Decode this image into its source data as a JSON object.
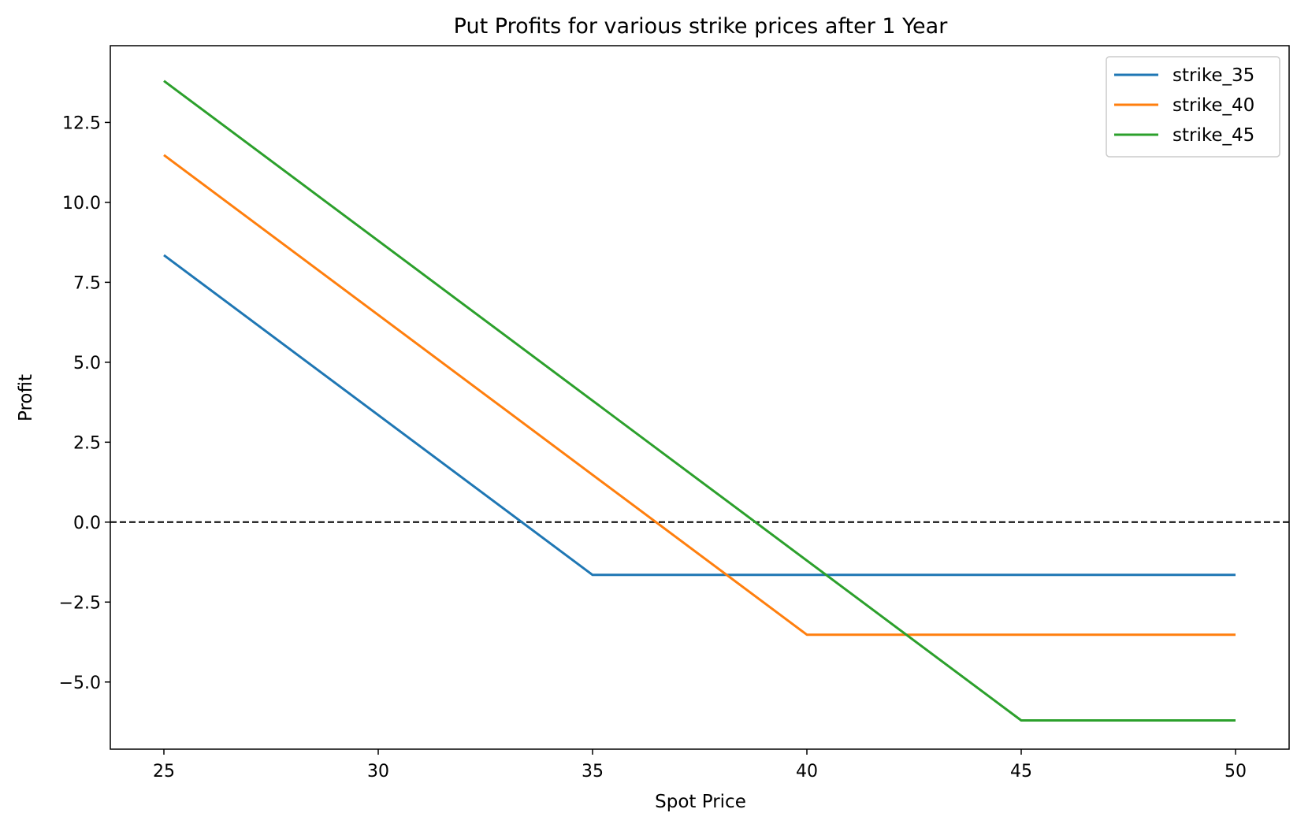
{
  "chart_data": {
    "type": "line",
    "title": "Put Profits for various strike prices after 1 Year",
    "xlabel": "Spot Price",
    "ylabel": "Profit",
    "xlim": [
      23.75,
      51.25
    ],
    "ylim": [
      -7.1,
      14.9
    ],
    "xticks": [
      25,
      30,
      35,
      40,
      45,
      50
    ],
    "xtick_labels": [
      "25",
      "30",
      "35",
      "40",
      "45",
      "50"
    ],
    "yticks": [
      -5.0,
      -2.5,
      0.0,
      2.5,
      5.0,
      7.5,
      10.0,
      12.5
    ],
    "ytick_labels": [
      "−5.0",
      "−2.5",
      "0.0",
      "2.5",
      "5.0",
      "7.5",
      "10.0",
      "12.5"
    ],
    "grid": false,
    "legend_position": "top-right",
    "reference_line": {
      "y": 0.0,
      "style": "dashed",
      "color": "#000000"
    },
    "series": [
      {
        "name": "strike_35",
        "color": "#1f77b4",
        "x": [
          25,
          35,
          50
        ],
        "y": [
          8.35,
          -1.65,
          -1.65
        ]
      },
      {
        "name": "strike_40",
        "color": "#ff7f0e",
        "x": [
          25,
          40,
          50
        ],
        "y": [
          11.48,
          -3.52,
          -3.52
        ]
      },
      {
        "name": "strike_45",
        "color": "#2ca02c",
        "x": [
          25,
          45,
          50
        ],
        "y": [
          13.8,
          -6.2,
          -6.2
        ]
      }
    ]
  }
}
